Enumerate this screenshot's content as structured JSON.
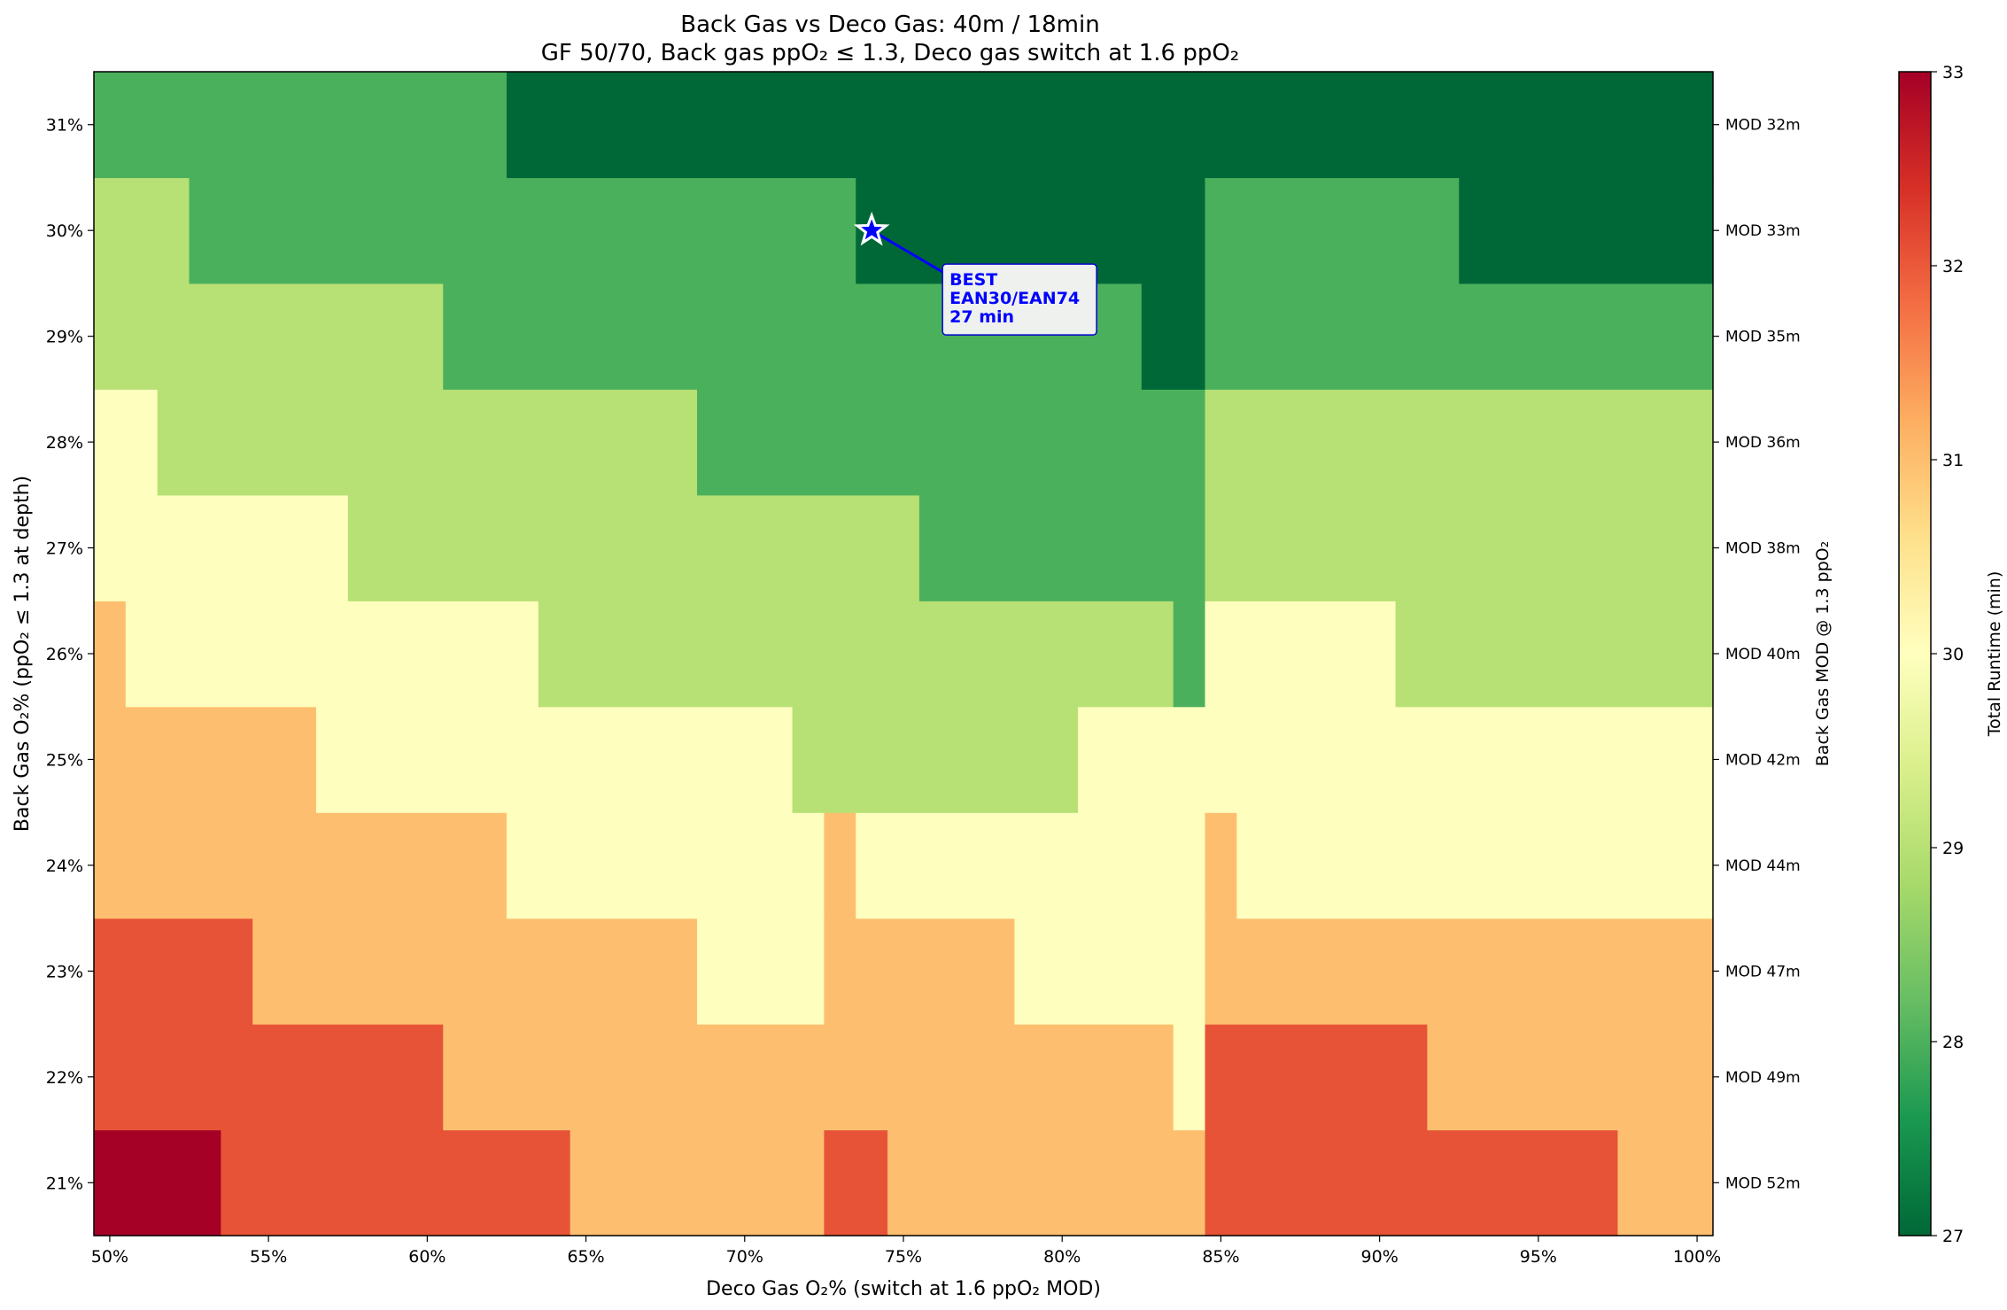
{
  "chart_data": {
    "type": "heatmap",
    "title_line1": "Back Gas vs Deco Gas: 40m / 18min",
    "title_line2": "GF 50/70, Back gas ppO₂ ≤ 1.3, Deco gas switch at 1.6 ppO₂",
    "xlabel": "Deco Gas O₂% (switch at 1.6 ppO₂ MOD)",
    "ylabel": "Back Gas O₂% (ppO₂ ≤ 1.3 at depth)",
    "right_ylabel": "Back Gas MOD @ 1.3 ppO₂",
    "colorbar_label": "Total Runtime (min)",
    "x_values_pct": [
      50,
      51,
      52,
      53,
      54,
      55,
      56,
      57,
      58,
      59,
      60,
      61,
      62,
      63,
      64,
      65,
      66,
      67,
      68,
      69,
      70,
      71,
      72,
      73,
      74,
      75,
      76,
      77,
      78,
      79,
      80,
      81,
      82,
      83,
      84,
      85,
      86,
      87,
      88,
      89,
      90,
      91,
      92,
      93,
      94,
      95,
      96,
      97,
      98,
      99,
      100
    ],
    "x_ticks": [
      {
        "value": 50,
        "label": "50%"
      },
      {
        "value": 55,
        "label": "55%"
      },
      {
        "value": 60,
        "label": "60%"
      },
      {
        "value": 65,
        "label": "65%"
      },
      {
        "value": 70,
        "label": "70%"
      },
      {
        "value": 75,
        "label": "75%"
      },
      {
        "value": 80,
        "label": "80%"
      },
      {
        "value": 85,
        "label": "85%"
      },
      {
        "value": 90,
        "label": "90%"
      },
      {
        "value": 95,
        "label": "95%"
      },
      {
        "value": 100,
        "label": "100%"
      }
    ],
    "y_values_pct": [
      21,
      22,
      23,
      24,
      25,
      26,
      27,
      28,
      29,
      30,
      31
    ],
    "y_tick_labels": [
      "21%",
      "22%",
      "23%",
      "24%",
      "25%",
      "26%",
      "27%",
      "28%",
      "29%",
      "30%",
      "31%"
    ],
    "right_tick_labels": [
      "MOD 52m",
      "MOD 49m",
      "MOD 47m",
      "MOD 44m",
      "MOD 42m",
      "MOD 40m",
      "MOD 38m",
      "MOD 36m",
      "MOD 35m",
      "MOD 33m",
      "MOD 32m"
    ],
    "runtime_levels": [
      27,
      28,
      29,
      30,
      31,
      32,
      33
    ],
    "runtime_colors": {
      "27": "#006837",
      "28": "#4bb05c",
      "29": "#b7e075",
      "30": "#feffbe",
      "31": "#fdbf6f",
      "32": "#e75337",
      "33": "#a50026"
    },
    "runtime_min_by_row": [
      {
        "back_o2": 21,
        "segments": [
          {
            "from": 50,
            "to": 53,
            "runtime": 33
          },
          {
            "from": 54,
            "to": 64,
            "runtime": 32
          },
          {
            "from": 65,
            "to": 72,
            "runtime": 31
          },
          {
            "from": 73,
            "to": 74,
            "runtime": 32
          },
          {
            "from": 75,
            "to": 84,
            "runtime": 31
          },
          {
            "from": 85,
            "to": 97,
            "runtime": 32
          },
          {
            "from": 98,
            "to": 100,
            "runtime": 31
          }
        ]
      },
      {
        "back_o2": 22,
        "segments": [
          {
            "from": 50,
            "to": 60,
            "runtime": 32
          },
          {
            "from": 61,
            "to": 83,
            "runtime": 31
          },
          {
            "from": 84,
            "to": 84,
            "runtime": 30
          },
          {
            "from": 85,
            "to": 91,
            "runtime": 32
          },
          {
            "from": 92,
            "to": 100,
            "runtime": 31
          }
        ]
      },
      {
        "back_o2": 23,
        "segments": [
          {
            "from": 50,
            "to": 54,
            "runtime": 32
          },
          {
            "from": 55,
            "to": 68,
            "runtime": 31
          },
          {
            "from": 69,
            "to": 72,
            "runtime": 30
          },
          {
            "from": 73,
            "to": 78,
            "runtime": 31
          },
          {
            "from": 79,
            "to": 84,
            "runtime": 30
          },
          {
            "from": 85,
            "to": 100,
            "runtime": 31
          }
        ]
      },
      {
        "back_o2": 24,
        "segments": [
          {
            "from": 50,
            "to": 62,
            "runtime": 31
          },
          {
            "from": 63,
            "to": 72,
            "runtime": 30
          },
          {
            "from": 73,
            "to": 73,
            "runtime": 31
          },
          {
            "from": 74,
            "to": 84,
            "runtime": 30
          },
          {
            "from": 85,
            "to": 85,
            "runtime": 31
          },
          {
            "from": 86,
            "to": 100,
            "runtime": 30
          }
        ]
      },
      {
        "back_o2": 25,
        "segments": [
          {
            "from": 50,
            "to": 56,
            "runtime": 31
          },
          {
            "from": 57,
            "to": 71,
            "runtime": 30
          },
          {
            "from": 72,
            "to": 80,
            "runtime": 29
          },
          {
            "from": 81,
            "to": 100,
            "runtime": 30
          }
        ]
      },
      {
        "back_o2": 26,
        "segments": [
          {
            "from": 50,
            "to": 50,
            "runtime": 31
          },
          {
            "from": 51,
            "to": 63,
            "runtime": 30
          },
          {
            "from": 64,
            "to": 83,
            "runtime": 29
          },
          {
            "from": 84,
            "to": 84,
            "runtime": 28
          },
          {
            "from": 85,
            "to": 90,
            "runtime": 30
          },
          {
            "from": 91,
            "to": 100,
            "runtime": 29
          }
        ]
      },
      {
        "back_o2": 27,
        "segments": [
          {
            "from": 50,
            "to": 57,
            "runtime": 30
          },
          {
            "from": 58,
            "to": 75,
            "runtime": 29
          },
          {
            "from": 76,
            "to": 84,
            "runtime": 28
          },
          {
            "from": 85,
            "to": 100,
            "runtime": 29
          }
        ]
      },
      {
        "back_o2": 28,
        "segments": [
          {
            "from": 50,
            "to": 51,
            "runtime": 30
          },
          {
            "from": 52,
            "to": 68,
            "runtime": 29
          },
          {
            "from": 69,
            "to": 84,
            "runtime": 28
          },
          {
            "from": 85,
            "to": 100,
            "runtime": 29
          }
        ]
      },
      {
        "back_o2": 29,
        "segments": [
          {
            "from": 50,
            "to": 60,
            "runtime": 29
          },
          {
            "from": 61,
            "to": 82,
            "runtime": 28
          },
          {
            "from": 83,
            "to": 84,
            "runtime": 27
          },
          {
            "from": 85,
            "to": 100,
            "runtime": 28
          }
        ]
      },
      {
        "back_o2": 30,
        "segments": [
          {
            "from": 50,
            "to": 52,
            "runtime": 29
          },
          {
            "from": 53,
            "to": 73,
            "runtime": 28
          },
          {
            "from": 74,
            "to": 84,
            "runtime": 27
          },
          {
            "from": 85,
            "to": 92,
            "runtime": 28
          },
          {
            "from": 93,
            "to": 100,
            "runtime": 27
          }
        ]
      },
      {
        "back_o2": 31,
        "segments": [
          {
            "from": 50,
            "to": 62,
            "runtime": 28
          },
          {
            "from": 63,
            "to": 100,
            "runtime": 27
          }
        ]
      }
    ],
    "colorbar_ticks": [
      "27",
      "28",
      "29",
      "30",
      "31",
      "32",
      "33"
    ],
    "best": {
      "deco_o2": 74,
      "back_o2": 30,
      "label_lines": [
        "BEST",
        "EAN30/EAN74",
        "27 min"
      ],
      "marker_color": "#0000ff"
    }
  }
}
